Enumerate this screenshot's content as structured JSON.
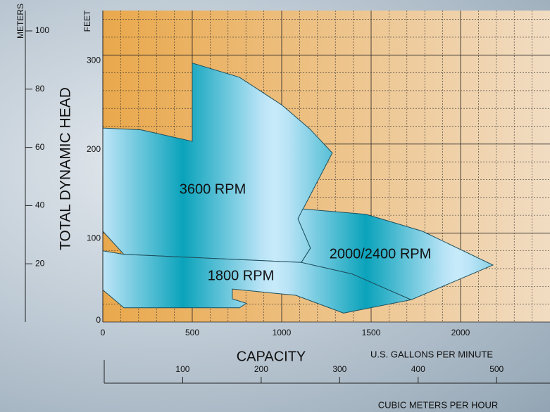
{
  "chart_data": {
    "type": "region",
    "y_label": "TOTAL DYNAMIC HEAD",
    "y_unit": "FEET",
    "y2_unit": "METERS",
    "x_label": "CAPACITY",
    "x_unit": "U.S. GALLONS PER MINUTE",
    "x2_unit": "CUBIC METERS PER HOUR",
    "xlim": [
      0,
      2500
    ],
    "xticks": [
      0,
      500,
      1000,
      1500,
      2000
    ],
    "xminor": [
      100,
      200,
      300,
      400,
      600,
      700,
      800,
      900,
      1100,
      1200,
      1300,
      1400,
      1600,
      1700,
      1800,
      1900,
      2100,
      2200,
      2300,
      2400
    ],
    "ylim": [
      0,
      350
    ],
    "yticks": [
      0,
      100,
      200,
      300
    ],
    "yminor": [
      20,
      40,
      60,
      80,
      120,
      140,
      160,
      180,
      220,
      240,
      260,
      280,
      320,
      340
    ],
    "y2lim": [
      0,
      107
    ],
    "y2ticks": [
      20,
      40,
      60,
      80,
      100
    ],
    "x2lim": [
      0,
      568
    ],
    "x2ticks": [
      100,
      200,
      300,
      400,
      500
    ],
    "grid": true,
    "series": [
      {
        "name": "3600 RPM",
        "color": "#0aa3bb",
        "x": [
          0,
          213,
          500,
          500,
          764,
          1000,
          1157,
          1283,
          1091,
          1161,
          1110,
          118,
          0
        ],
        "values": [
          218,
          216,
          203,
          291,
          275,
          244,
          217,
          190,
          116,
          83,
          67,
          76,
          102
        ]
      },
      {
        "name": "1800 RPM",
        "color": "#0aa3bb",
        "x": [
          0,
          118,
          1110,
          1394,
          1724,
          1346,
          1079,
          724,
          724,
          803,
          764,
          118,
          0
        ],
        "values": [
          80,
          76,
          67,
          54,
          25,
          10,
          30,
          37,
          26,
          21,
          16,
          16,
          36
        ]
      },
      {
        "name": "2000/2400 RPM",
        "color": "#0aa3bb",
        "x": [
          1091,
          1118,
          1472,
          1787,
          2181,
          1724,
          1394,
          1110,
          1161
        ],
        "values": [
          116,
          127,
          121,
          102,
          64,
          25,
          54,
          67,
          83
        ]
      }
    ]
  }
}
